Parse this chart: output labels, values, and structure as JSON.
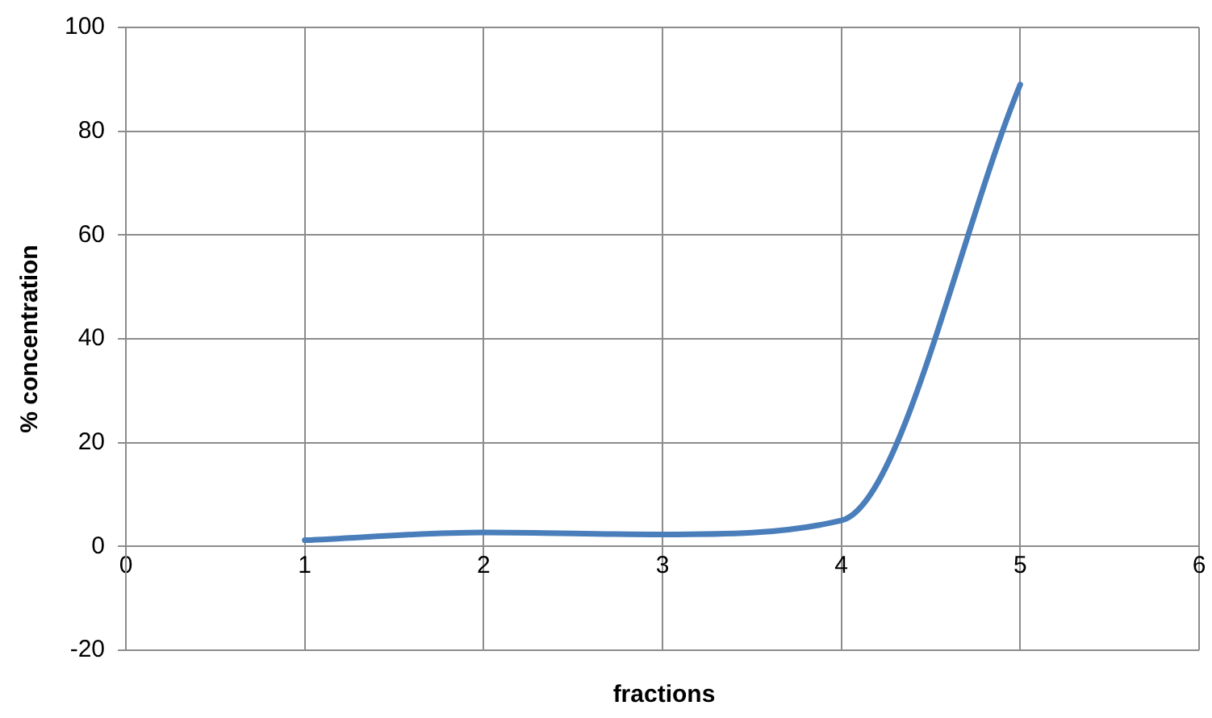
{
  "chart_data": {
    "type": "line",
    "xlabel": "fractions",
    "ylabel": "% concentration",
    "x": [
      1,
      2,
      3,
      4,
      5
    ],
    "series": [
      {
        "color": "#4a7ebb",
        "values": [
          1.2,
          2.7,
          2.3,
          5,
          89
        ]
      }
    ],
    "xlim": [
      0,
      6
    ],
    "xticks": [
      0,
      1,
      2,
      3,
      4,
      5,
      6
    ],
    "ylim": [
      -20,
      100
    ],
    "yticks": [
      -20,
      0,
      20,
      40,
      60,
      80,
      100
    ],
    "grid": true,
    "marker": "none",
    "line_style": "solid",
    "legend": false
  }
}
